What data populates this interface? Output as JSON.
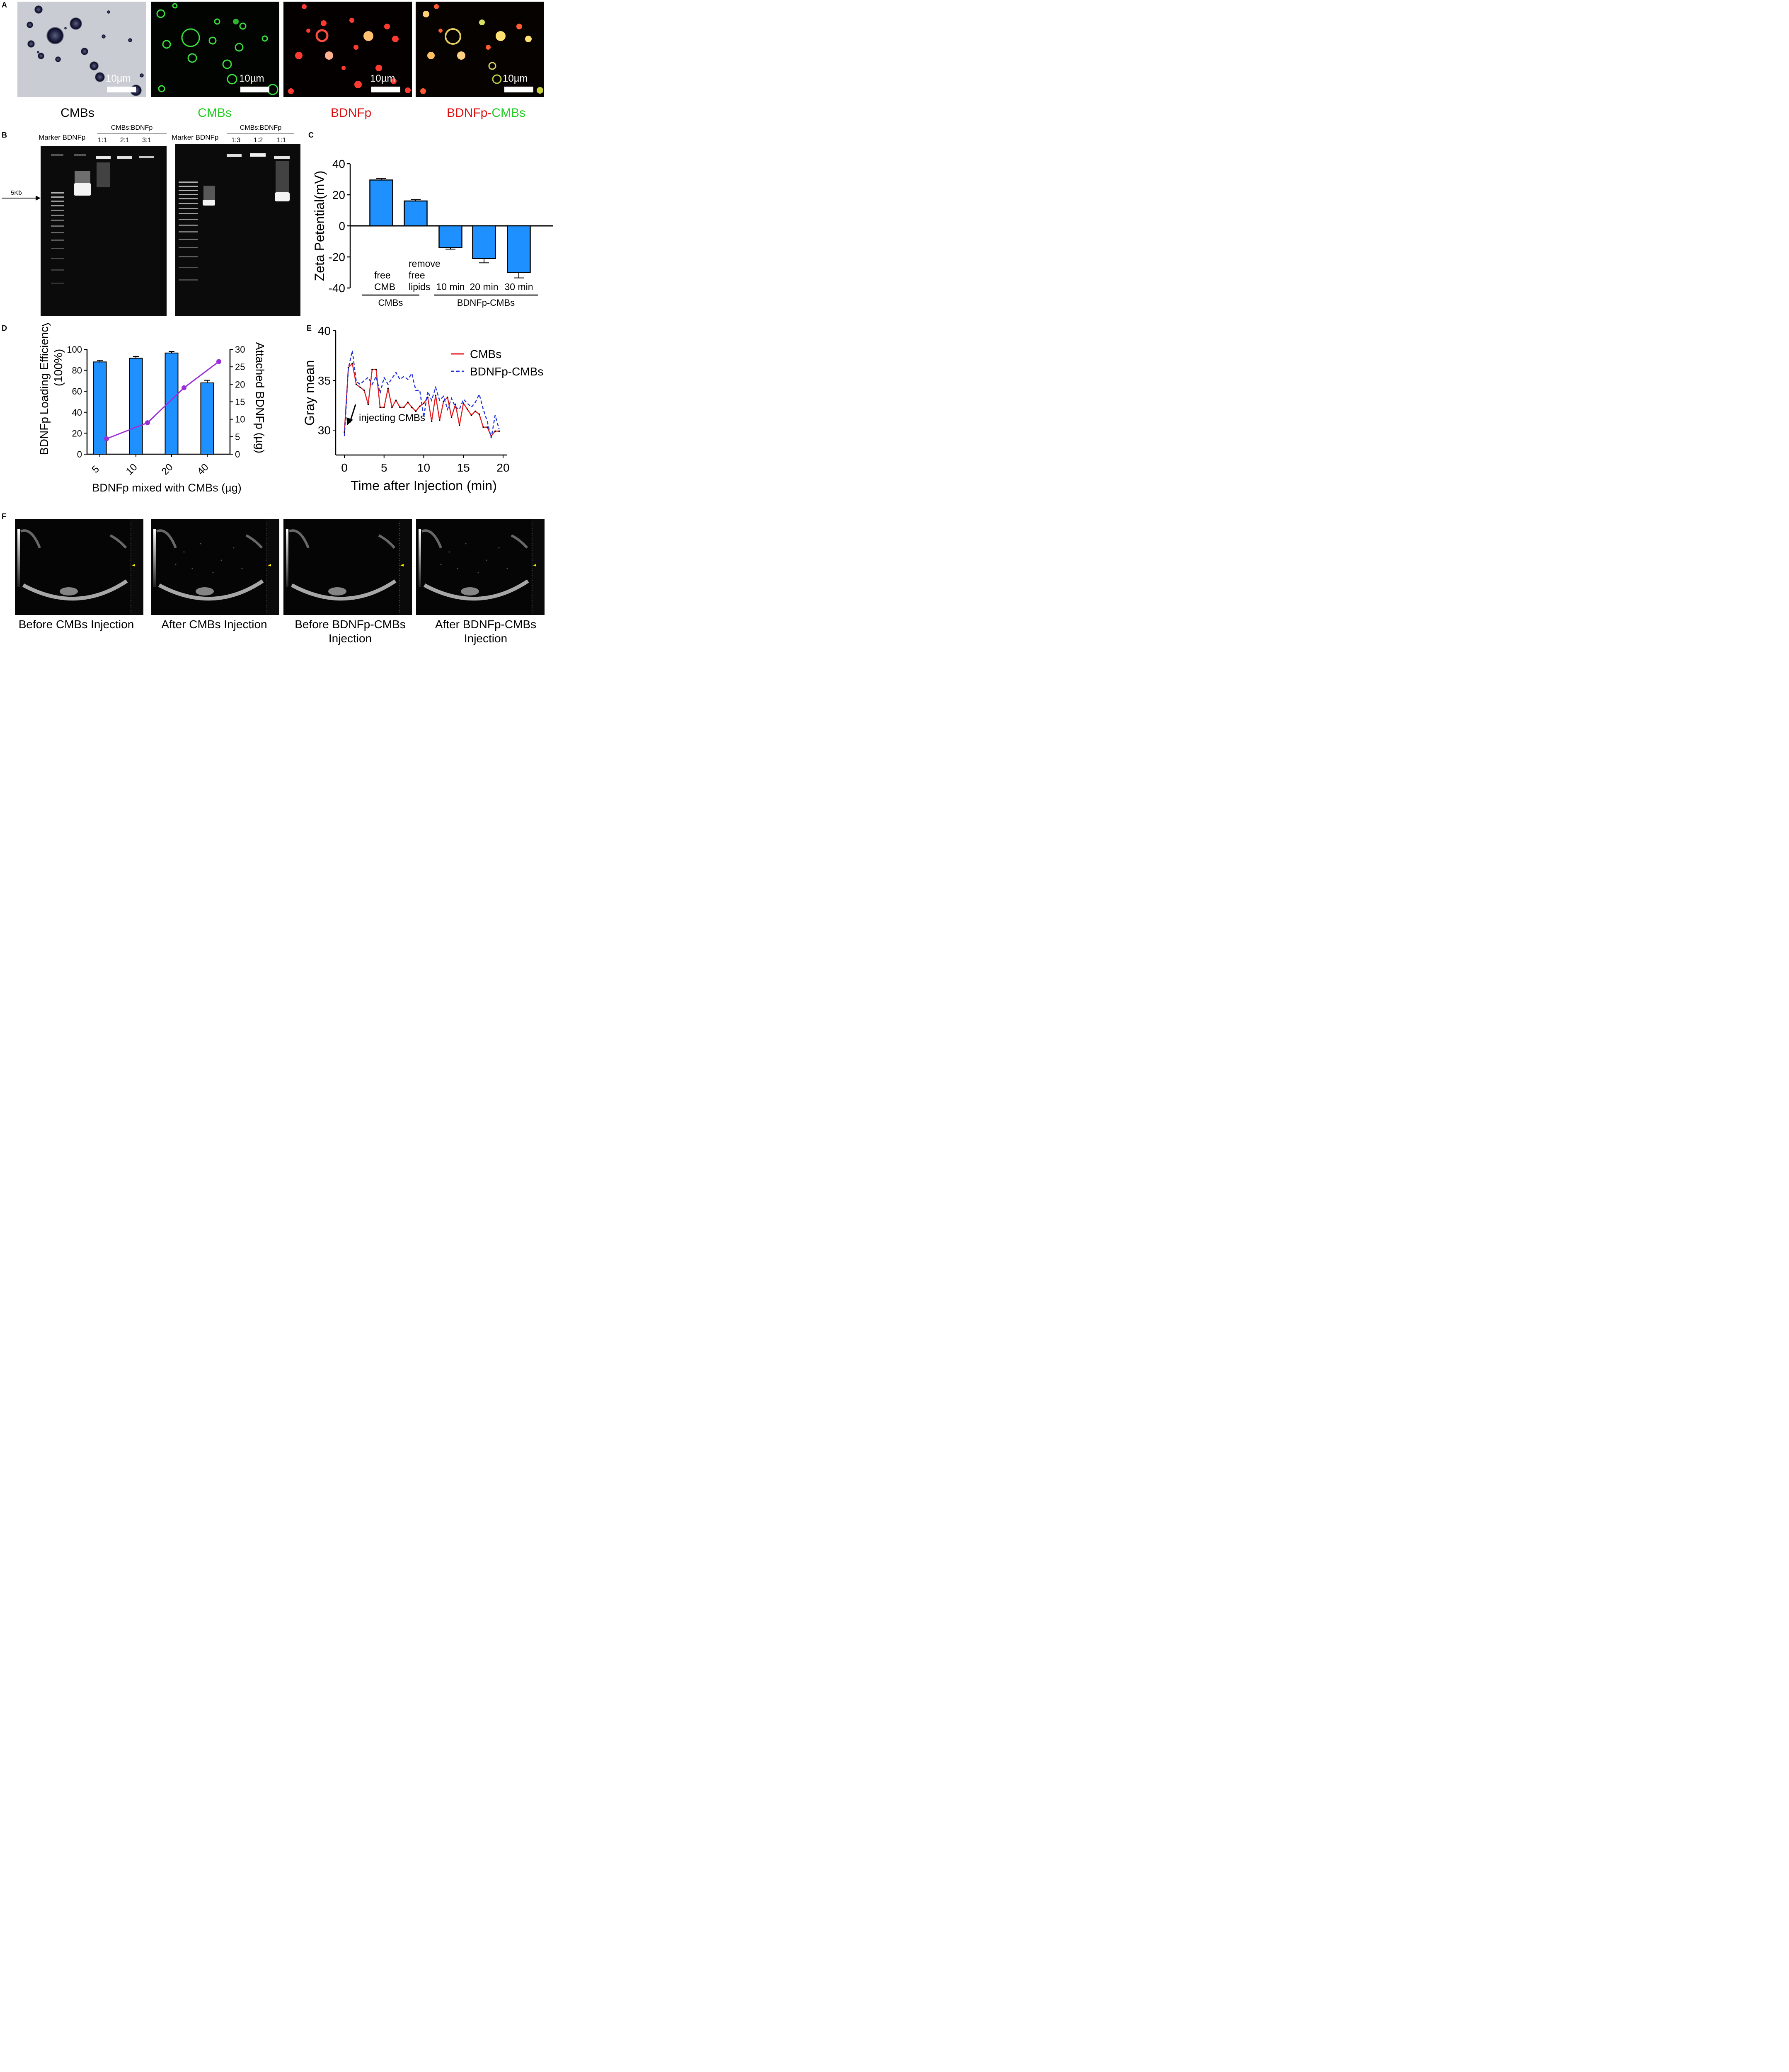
{
  "panels": {
    "A": {
      "label": "A",
      "scale_bar": "10µm",
      "images": [
        {
          "caption": "CMBs",
          "caption_color": "#000000",
          "style": "brightfield"
        },
        {
          "caption": "CMBs",
          "caption_color": "#22cc22",
          "style": "green"
        },
        {
          "caption": "BDNFp",
          "caption_color": "#dd1111",
          "style": "red"
        },
        {
          "caption": "BDNFp-CMBs",
          "caption_color": "#dd1111",
          "caption_color_2": "#22cc22",
          "style": "merge"
        }
      ],
      "caption_merge_part1": "BDNFp-",
      "caption_merge_part2": "CMBs"
    },
    "B": {
      "label": "B",
      "marker_label": "5Kb",
      "gel1": {
        "lanes_left": "Marker BDNFp",
        "group_title": "CMBs:BDNFp",
        "ratios": [
          "1:1",
          "2:1",
          "3:1"
        ]
      },
      "gel2": {
        "lanes_left": "Marker BDNFp",
        "group_title": "CMBs:BDNFp",
        "ratios": [
          "1:3",
          "1:2",
          "1:1"
        ]
      }
    },
    "F": {
      "label": "F",
      "captions": [
        [
          "Before CMBs Injection"
        ],
        [
          "After CMBs Injection"
        ],
        [
          "Before BDNFp-CMBs",
          "Injection"
        ],
        [
          "After BDNFp-CMBs",
          "Injection"
        ]
      ]
    }
  },
  "chart_data": [
    {
      "id": "C",
      "label": "C",
      "type": "bar",
      "ylabel": "Zeta Petential(mV)",
      "ylim": [
        -40,
        40
      ],
      "yticks": [
        -40,
        -20,
        0,
        20,
        40
      ],
      "bar_color": "#1e90ff",
      "categories": [
        {
          "lines": [
            "free",
            "CMB"
          ],
          "value": 29.5,
          "error": 1.0
        },
        {
          "lines": [
            "remove",
            "free",
            "lipids"
          ],
          "value": 16.0,
          "error": 0.8
        },
        {
          "lines": [
            "10 min"
          ],
          "value": -14.0,
          "error": 1.0
        },
        {
          "lines": [
            "20 min"
          ],
          "value": -21.0,
          "error": 2.8
        },
        {
          "lines": [
            "30 min"
          ],
          "value": -30.0,
          "error": 3.5
        }
      ],
      "groups": [
        {
          "name": "CMBs",
          "from": 0,
          "to": 1
        },
        {
          "name": "BDNFp-CMBs",
          "from": 2,
          "to": 4
        }
      ]
    },
    {
      "id": "D",
      "label": "D",
      "type": "bar+line",
      "xlabel": "BDNFp mixed with CMBs (µg)",
      "ylabel_left_1": "BDNFp",
      "ylabel_left_2": "Loading Efficiency",
      "ylabel_left_3": "(100%)",
      "ylabel_right": "Attached BDNFp (µg)",
      "categories": [
        "5",
        "10",
        "20",
        "40"
      ],
      "bar_values": [
        88,
        91.5,
        96.5,
        68
      ],
      "bar_errors": [
        1.2,
        1.8,
        1.5,
        2.5
      ],
      "ylim_left": [
        0,
        100
      ],
      "yticks_left": [
        0,
        20,
        40,
        60,
        80,
        100
      ],
      "line_values": [
        4.4,
        9.0,
        19.0,
        26.5
      ],
      "line_errors": [
        0.2,
        0.6,
        0.3,
        0.5
      ],
      "ylim_right": [
        0,
        30
      ],
      "yticks_right": [
        0,
        5,
        10,
        15,
        20,
        25,
        30
      ],
      "bar_color": "#1e90ff",
      "line_color": "#9b30d9"
    },
    {
      "id": "E",
      "label": "E",
      "type": "line",
      "xlabel": "Time after Injection (min)",
      "ylabel": "Gray mean",
      "xlim": [
        0,
        20
      ],
      "xticks": [
        0,
        5,
        10,
        15,
        20
      ],
      "ylim": [
        27.5,
        40
      ],
      "yticks": [
        30,
        35,
        40
      ],
      "annotation": "injecting CMBs",
      "legend_position": "top-right",
      "series": [
        {
          "name": "CMBs",
          "color": "#e02020",
          "dash": "solid",
          "x": [
            0,
            0.5,
            1.0,
            1.5,
            2.0,
            2.5,
            3.0,
            3.5,
            4.0,
            4.5,
            5.0,
            5.5,
            6.0,
            6.5,
            7.0,
            7.5,
            8.0,
            8.5,
            9.0,
            9.5,
            10.0,
            10.5,
            11.0,
            11.5,
            12.0,
            12.5,
            13.0,
            13.5,
            14.0,
            14.5,
            15.0,
            15.5,
            16.0,
            16.5,
            17.0,
            17.5,
            18.0,
            18.5,
            19.0,
            19.5
          ],
          "y": [
            29.8,
            36.3,
            36.7,
            34.6,
            34.3,
            34.0,
            32.6,
            36.1,
            36.1,
            32.3,
            32.3,
            34.2,
            32.3,
            33.0,
            32.3,
            32.3,
            32.8,
            32.3,
            31.9,
            32.4,
            32.7,
            33.3,
            30.9,
            33.5,
            31.0,
            32.9,
            33.3,
            31.3,
            32.6,
            30.5,
            32.7,
            32.1,
            31.5,
            31.9,
            31.6,
            30.3,
            30.3,
            29.4,
            29.9,
            29.9
          ]
        },
        {
          "name": "BDNFp-CMBs",
          "color": "#2233dd",
          "dash": "dashed",
          "x": [
            0,
            0.5,
            1.0,
            1.5,
            2.0,
            2.5,
            3.0,
            3.5,
            4.0,
            4.5,
            5.0,
            5.5,
            6.0,
            6.5,
            7.0,
            7.5,
            8.0,
            8.5,
            9.0,
            9.5,
            10.0,
            10.5,
            11.0,
            11.5,
            12.0,
            12.5,
            13.0,
            13.5,
            14.0,
            14.5,
            15.0,
            15.5,
            16.0,
            16.5,
            17.0,
            17.5,
            18.0,
            18.5,
            19.0,
            19.5
          ],
          "y": [
            29.4,
            36.2,
            38.0,
            34.9,
            34.6,
            35.0,
            35.3,
            34.6,
            35.4,
            33.7,
            35.3,
            34.6,
            35.2,
            35.8,
            35.1,
            35.4,
            35.1,
            35.7,
            34.0,
            34.0,
            31.3,
            33.9,
            33.0,
            34.3,
            33.0,
            33.4,
            32.1,
            33.2,
            32.3,
            32.1,
            33.1,
            32.7,
            32.3,
            32.8,
            33.6,
            32.1,
            30.9,
            29.2,
            31.5,
            30.1
          ]
        }
      ]
    }
  ]
}
